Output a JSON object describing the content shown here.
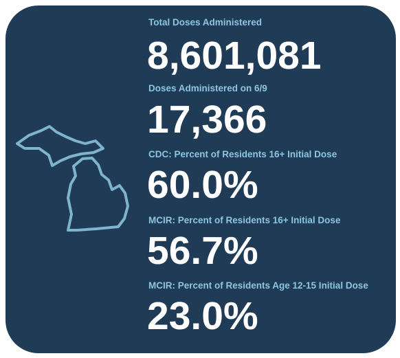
{
  "stats": [
    {
      "label": "Total Doses Administered",
      "value": "8,601,081"
    },
    {
      "label": "Doses Administered on 6/9",
      "value": "17,366"
    },
    {
      "label": "CDC: Percent of Residents 16+ Initial Dose",
      "value": "60.0%"
    },
    {
      "label": "MCIR: Percent of Residents 16+ Initial Dose",
      "value": "56.7%"
    },
    {
      "label": "MCIR: Percent of Residents Age 12-15 Initial Dose",
      "value": "23.0%"
    }
  ]
}
